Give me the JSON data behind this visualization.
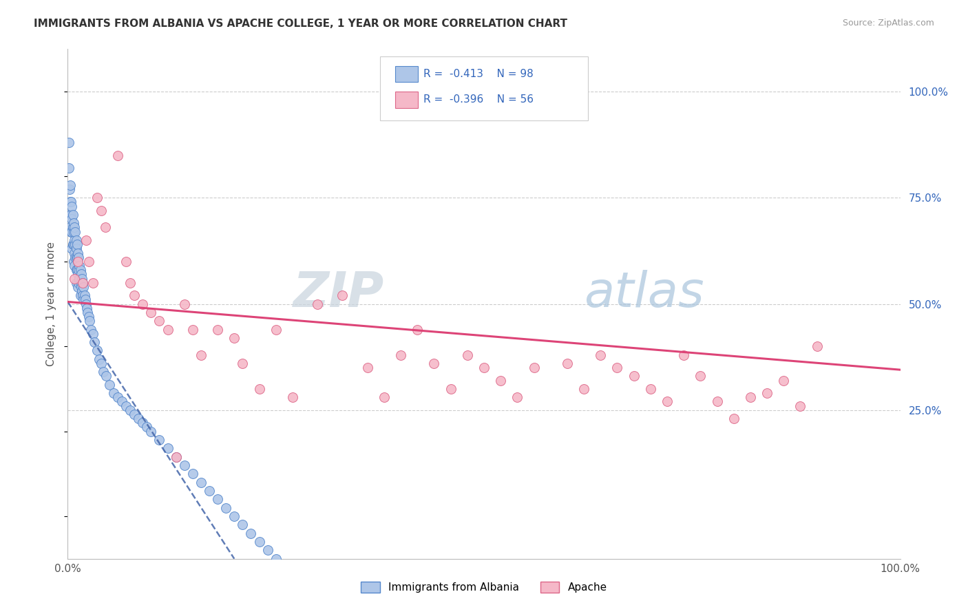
{
  "title": "IMMIGRANTS FROM ALBANIA VS APACHE COLLEGE, 1 YEAR OR MORE CORRELATION CHART",
  "source": "Source: ZipAtlas.com",
  "ylabel": "College, 1 year or more",
  "legend_label1": "Immigrants from Albania",
  "legend_label2": "Apache",
  "R1": "-0.413",
  "N1": "98",
  "R2": "-0.396",
  "N2": "56",
  "color_blue_fill": "#aec6e8",
  "color_blue_edge": "#5588cc",
  "color_pink_fill": "#f5b8c8",
  "color_pink_edge": "#dd6688",
  "color_blue_text": "#3366bb",
  "color_pink_line": "#dd4477",
  "color_blue_line": "#4466aa",
  "watermark_zip": "#c8d8e8",
  "watermark_atlas": "#a8c8e0",
  "background_color": "#ffffff",
  "grid_color": "#cccccc",
  "blue_points_x": [
    0.001,
    0.001,
    0.002,
    0.002,
    0.003,
    0.003,
    0.003,
    0.004,
    0.004,
    0.004,
    0.005,
    0.005,
    0.005,
    0.005,
    0.006,
    0.006,
    0.006,
    0.007,
    0.007,
    0.007,
    0.007,
    0.008,
    0.008,
    0.008,
    0.008,
    0.009,
    0.009,
    0.009,
    0.01,
    0.01,
    0.01,
    0.01,
    0.01,
    0.011,
    0.011,
    0.011,
    0.012,
    0.012,
    0.012,
    0.012,
    0.013,
    0.013,
    0.013,
    0.014,
    0.014,
    0.015,
    0.015,
    0.015,
    0.016,
    0.016,
    0.017,
    0.017,
    0.018,
    0.018,
    0.019,
    0.019,
    0.02,
    0.021,
    0.022,
    0.023,
    0.024,
    0.025,
    0.026,
    0.028,
    0.03,
    0.032,
    0.035,
    0.038,
    0.04,
    0.043,
    0.046,
    0.05,
    0.055,
    0.06,
    0.065,
    0.07,
    0.075,
    0.08,
    0.085,
    0.09,
    0.095,
    0.1,
    0.11,
    0.12,
    0.13,
    0.14,
    0.15,
    0.16,
    0.17,
    0.18,
    0.19,
    0.2,
    0.21,
    0.22,
    0.23,
    0.24,
    0.25,
    0.26
  ],
  "blue_points_y": [
    0.88,
    0.82,
    0.77,
    0.71,
    0.78,
    0.74,
    0.68,
    0.74,
    0.71,
    0.67,
    0.73,
    0.7,
    0.67,
    0.63,
    0.71,
    0.68,
    0.64,
    0.69,
    0.67,
    0.64,
    0.6,
    0.68,
    0.65,
    0.62,
    0.59,
    0.67,
    0.64,
    0.61,
    0.65,
    0.63,
    0.61,
    0.58,
    0.55,
    0.64,
    0.61,
    0.58,
    0.62,
    0.6,
    0.57,
    0.54,
    0.61,
    0.58,
    0.55,
    0.59,
    0.56,
    0.58,
    0.55,
    0.52,
    0.57,
    0.54,
    0.56,
    0.53,
    0.55,
    0.52,
    0.54,
    0.51,
    0.52,
    0.51,
    0.5,
    0.49,
    0.48,
    0.47,
    0.46,
    0.44,
    0.43,
    0.41,
    0.39,
    0.37,
    0.36,
    0.34,
    0.33,
    0.31,
    0.29,
    0.28,
    0.27,
    0.26,
    0.25,
    0.24,
    0.23,
    0.22,
    0.21,
    0.2,
    0.18,
    0.16,
    0.14,
    0.12,
    0.1,
    0.08,
    0.06,
    0.04,
    0.02,
    0.0,
    -0.02,
    -0.04,
    -0.06,
    -0.08,
    -0.1,
    -0.12
  ],
  "pink_points_x": [
    0.008,
    0.012,
    0.018,
    0.022,
    0.025,
    0.03,
    0.035,
    0.04,
    0.045,
    0.06,
    0.07,
    0.075,
    0.08,
    0.09,
    0.1,
    0.11,
    0.12,
    0.13,
    0.14,
    0.15,
    0.16,
    0.18,
    0.2,
    0.21,
    0.23,
    0.25,
    0.27,
    0.3,
    0.33,
    0.36,
    0.38,
    0.4,
    0.42,
    0.44,
    0.46,
    0.48,
    0.5,
    0.52,
    0.54,
    0.56,
    0.6,
    0.62,
    0.64,
    0.66,
    0.68,
    0.7,
    0.72,
    0.74,
    0.76,
    0.78,
    0.8,
    0.82,
    0.84,
    0.86,
    0.88,
    0.9
  ],
  "pink_points_y": [
    0.56,
    0.6,
    0.55,
    0.65,
    0.6,
    0.55,
    0.75,
    0.72,
    0.68,
    0.85,
    0.6,
    0.55,
    0.52,
    0.5,
    0.48,
    0.46,
    0.44,
    0.14,
    0.5,
    0.44,
    0.38,
    0.44,
    0.42,
    0.36,
    0.3,
    0.44,
    0.28,
    0.5,
    0.52,
    0.35,
    0.28,
    0.38,
    0.44,
    0.36,
    0.3,
    0.38,
    0.35,
    0.32,
    0.28,
    0.35,
    0.36,
    0.3,
    0.38,
    0.35,
    0.33,
    0.3,
    0.27,
    0.38,
    0.33,
    0.27,
    0.23,
    0.28,
    0.29,
    0.32,
    0.26,
    0.4
  ],
  "blue_line_x": [
    0.0,
    0.2
  ],
  "blue_line_y": [
    0.505,
    -0.1
  ],
  "pink_line_x": [
    0.0,
    1.0
  ],
  "pink_line_y": [
    0.505,
    0.345
  ],
  "xlim": [
    0.0,
    1.0
  ],
  "ylim": [
    -0.1,
    1.1
  ],
  "yticks": [
    0.25,
    0.5,
    0.75,
    1.0
  ],
  "ytick_labels": [
    "25.0%",
    "50.0%",
    "75.0%",
    "100.0%"
  ],
  "xticks": [
    0.0,
    1.0
  ],
  "xtick_labels": [
    "0.0%",
    "100.0%"
  ]
}
